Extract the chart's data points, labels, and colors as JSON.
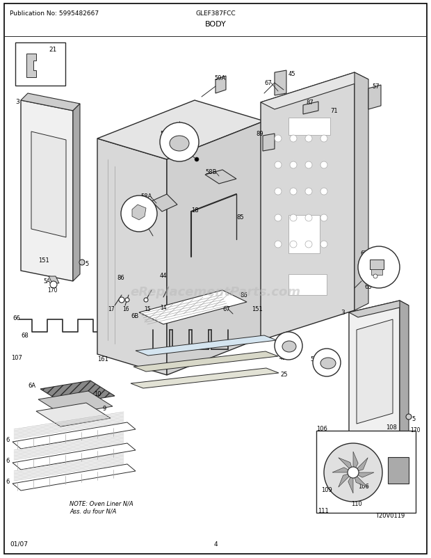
{
  "title": "BODY",
  "model": "GLEF387FCC",
  "publication": "Publication No: 5995482667",
  "page": "4",
  "date": "01/07",
  "watermark": "eReplacementParts.com",
  "bg_color": "#ffffff",
  "border_color": "#000000",
  "fig_width": 6.2,
  "fig_height": 8.03,
  "dpi": 100,
  "note_text": "NOTE: Oven Liner N/A\nAss. du four N/A"
}
